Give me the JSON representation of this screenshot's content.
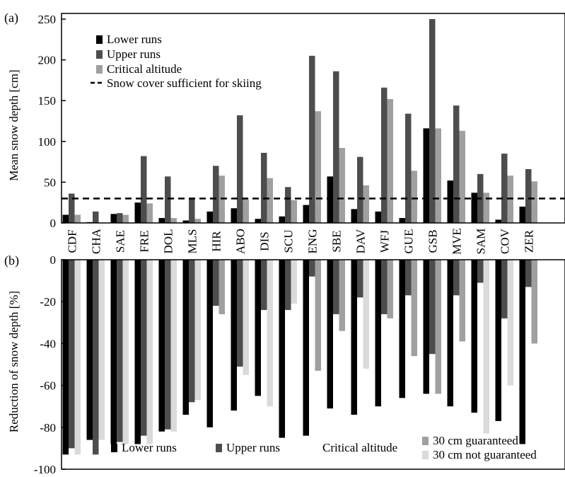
{
  "colors": {
    "lower": "#000000",
    "upper": "#4d4d4d",
    "critical": "#a0a0a0",
    "critical_not_guaranteed": "#dadada",
    "axis": "#000000"
  },
  "chart_data": [
    {
      "panel_label": "(a)",
      "type": "bar",
      "ylabel": "Mean snow depth [cm]",
      "ylim": [
        0,
        250
      ],
      "yticks": [
        0,
        50,
        100,
        150,
        200,
        250
      ],
      "categories": [
        "CDF",
        "CHA",
        "SAE",
        "FRE",
        "DOL",
        "MLS",
        "HIR",
        "ABO",
        "DIS",
        "SCU",
        "ENG",
        "SBE",
        "DAV",
        "WFJ",
        "GUE",
        "GSB",
        "MVE",
        "SAM",
        "COV",
        "ZER"
      ],
      "series": [
        {
          "name": "Lower runs",
          "color": "#000000",
          "values": [
            10,
            1,
            11,
            25,
            6,
            3,
            14,
            18,
            5,
            8,
            22,
            57,
            17,
            14,
            6,
            116,
            52,
            37,
            4,
            20
          ]
        },
        {
          "name": "Upper runs",
          "color": "#4d4d4d",
          "values": [
            36,
            14,
            12,
            82,
            57,
            30,
            70,
            132,
            86,
            44,
            205,
            186,
            81,
            166,
            134,
            252,
            144,
            60,
            85,
            66
          ]
        },
        {
          "name": "Critical altitude",
          "color": "#a0a0a0",
          "values": [
            10,
            0,
            10,
            24,
            6,
            5,
            58,
            29,
            55,
            28,
            137,
            92,
            46,
            152,
            64,
            116,
            113,
            37,
            58,
            51
          ]
        }
      ],
      "reference_line": {
        "label": "Snow cover sufficient for skiing",
        "value": 30,
        "style": "dashed"
      },
      "legend": {
        "position": "top-left",
        "entries": [
          "Lower runs",
          "Upper runs",
          "Critical altitude",
          "Snow cover sufficient for skiing"
        ]
      },
      "grid": false
    },
    {
      "panel_label": "(b)",
      "type": "bar",
      "ylabel": "Reduction of snow depth [%]",
      "ylim": [
        -100,
        0
      ],
      "yticks": [
        0,
        -20,
        -40,
        -60,
        -80,
        -100
      ],
      "categories": [
        "CDF",
        "CHA",
        "SAE",
        "FRE",
        "DOL",
        "MLS",
        "HIR",
        "ABO",
        "DIS",
        "SCU",
        "ENG",
        "SBE",
        "DAV",
        "WFJ",
        "GUE",
        "GSB",
        "MVE",
        "SAM",
        "COV",
        "ZER"
      ],
      "series": [
        {
          "name": "Lower runs",
          "color": "#000000",
          "values": [
            -93,
            -86,
            -88,
            -88,
            -82,
            -74,
            -80,
            -72,
            -65,
            -85,
            -84,
            -71,
            -74,
            -70,
            -66,
            -64,
            -70,
            -73,
            -77,
            -88
          ]
        },
        {
          "name": "Upper runs",
          "color": "#4d4d4d",
          "values": [
            -90,
            -93,
            -87,
            -84,
            -81,
            -68,
            -22,
            -51,
            -24,
            -24,
            -8,
            -26,
            -18,
            -26,
            -17,
            -45,
            -17,
            -11,
            -28,
            -13
          ]
        },
        {
          "name": "Critical altitude",
          "color": "#a0a0a0",
          "values": [
            -93,
            -86,
            -88,
            -88,
            -82,
            -67,
            -26,
            -55,
            -70,
            -21,
            -53,
            -34,
            -52,
            -28,
            -46,
            -64,
            -39,
            -83,
            -60,
            -40
          ],
          "guaranteed": [
            false,
            false,
            false,
            false,
            false,
            false,
            true,
            false,
            false,
            false,
            true,
            true,
            false,
            true,
            true,
            true,
            true,
            false,
            false,
            true
          ]
        }
      ],
      "legend": {
        "position": "bottom",
        "entries": [
          "Lower runs",
          "Upper runs",
          "Critical altitude",
          "30 cm guaranteed",
          "30 cm not guaranteed"
        ]
      },
      "grid": false
    }
  ]
}
